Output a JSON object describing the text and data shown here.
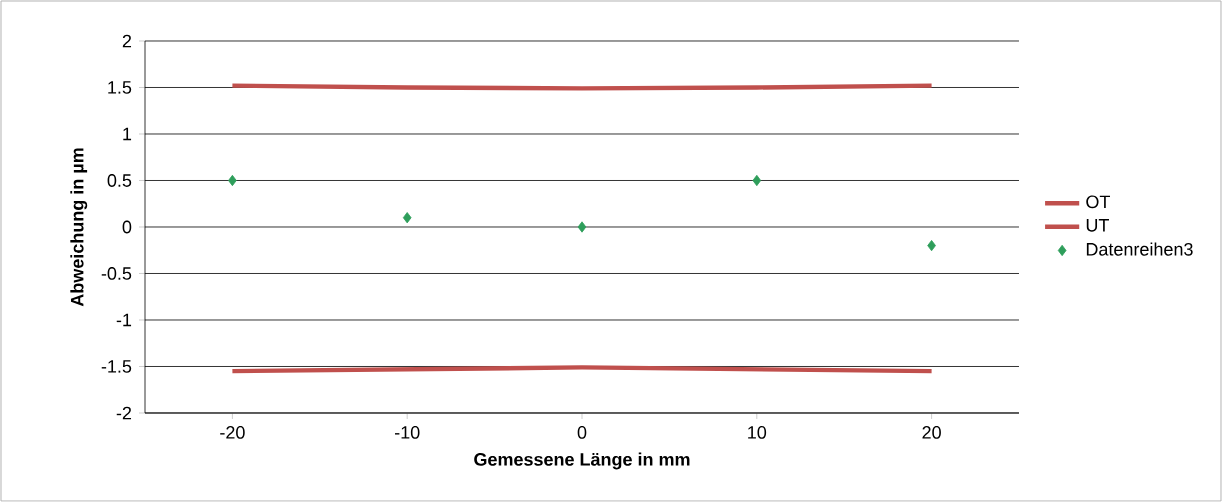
{
  "chart_data": {
    "type": "line",
    "xlabel": "Gemessene Länge in mm",
    "ylabel": "Abweichung in µm",
    "xlim": [
      -25,
      25
    ],
    "xticks": [
      -20,
      -10,
      0,
      10,
      20
    ],
    "ylim": [
      -2,
      2
    ],
    "yticks": [
      -2,
      -1.5,
      -1,
      -0.5,
      0,
      0.5,
      1,
      1.5,
      2
    ],
    "grid": "y",
    "legend": "right",
    "series": [
      {
        "name": "OT",
        "color": "#c0504d",
        "x": [
          -20,
          -10,
          0,
          10,
          20
        ],
        "values": [
          1.52,
          1.5,
          1.49,
          1.5,
          1.52
        ]
      },
      {
        "name": "UT",
        "color": "#c0504d",
        "x": [
          -20,
          -10,
          0,
          10,
          20
        ],
        "values": [
          -1.55,
          -1.53,
          -1.51,
          -1.53,
          -1.55
        ]
      },
      {
        "name": "Datenreihen3",
        "type": "scatter",
        "marker": "diamond",
        "color": "#2e9e5b",
        "x": [
          -20,
          -10,
          0,
          10,
          20
        ],
        "values": [
          0.5,
          0.1,
          0,
          0.5,
          -0.2
        ]
      }
    ]
  }
}
